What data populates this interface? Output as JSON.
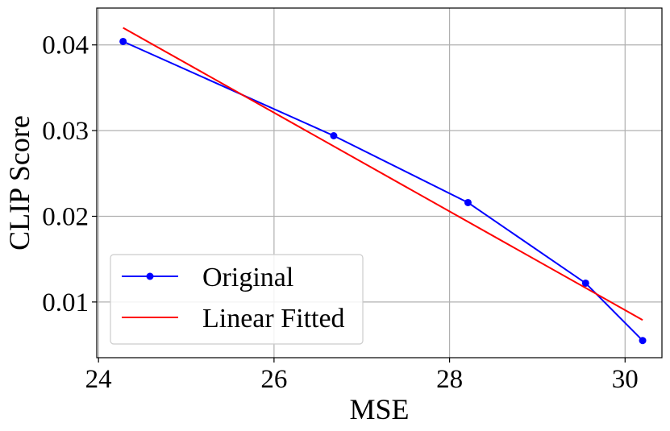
{
  "chart_data": {
    "type": "line",
    "xlabel": "MSE",
    "ylabel": "CLIP Score",
    "xlim": [
      23.98,
      30.42
    ],
    "ylim": [
      0.0035,
      0.0443
    ],
    "xticks": [
      24,
      26,
      28,
      30
    ],
    "xtick_labels": [
      "24",
      "26",
      "28",
      "30"
    ],
    "yticks": [
      0.01,
      0.02,
      0.03,
      0.04
    ],
    "ytick_labels": [
      "0.01",
      "0.02",
      "0.03",
      "0.04"
    ],
    "grid": true,
    "legend_position": "lower-left",
    "series": [
      {
        "name": "Original",
        "color": "#0000ff",
        "marker": "circle",
        "x": [
          24.28,
          26.68,
          28.21,
          29.55,
          30.2
        ],
        "y": [
          0.0404,
          0.0294,
          0.0216,
          0.0122,
          0.0055
        ]
      },
      {
        "name": "Linear Fitted",
        "color": "#ff0000",
        "marker": "none",
        "x": [
          24.28,
          30.2
        ],
        "y": [
          0.042,
          0.0079
        ]
      }
    ]
  }
}
